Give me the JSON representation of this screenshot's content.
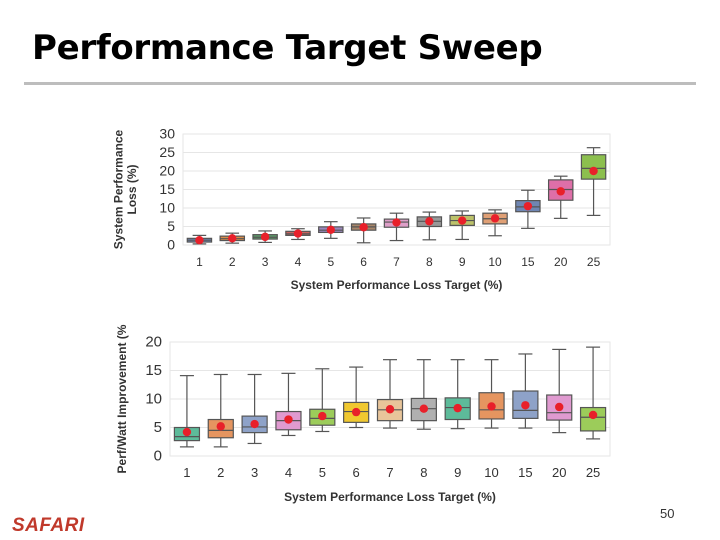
{
  "slide": {
    "title": "Performance Target Sweep",
    "page_number": "50",
    "logo_text": "SAFARI"
  },
  "colors": {
    "brand": "#c0392b",
    "mean_marker": "#e8202a",
    "axis_text": "#333333",
    "grid": "#e6e6e6",
    "box_outline": "#555555",
    "title_rule": "#bdbdbd"
  },
  "chart_data": [
    {
      "type": "box",
      "title": "",
      "xlabel": "System Performance Loss Target (%)",
      "ylabel": "System Performance Loss (%)",
      "ylim": [
        0,
        30
      ],
      "yticks": [
        0,
        5,
        10,
        15,
        20,
        25,
        30
      ],
      "categories": [
        "1",
        "2",
        "3",
        "4",
        "5",
        "6",
        "7",
        "8",
        "9",
        "10",
        "15",
        "20",
        "25"
      ],
      "boxes": [
        {
          "category": "1",
          "whisker_low": 0.3,
          "q1": 0.8,
          "median": 1.3,
          "q3": 1.8,
          "whisker_high": 2.6,
          "mean": 1.3,
          "color": "#6f86b3"
        },
        {
          "category": "2",
          "whisker_low": 0.5,
          "q1": 1.2,
          "median": 1.7,
          "q3": 2.4,
          "whisker_high": 3.2,
          "mean": 1.8,
          "color": "#d98c4a"
        },
        {
          "category": "3",
          "whisker_low": 0.7,
          "q1": 1.6,
          "median": 2.1,
          "q3": 2.8,
          "whisker_high": 3.8,
          "mean": 2.2,
          "color": "#5d9e6a"
        },
        {
          "category": "4",
          "whisker_low": 1.5,
          "q1": 2.6,
          "median": 3.0,
          "q3": 3.7,
          "whisker_high": 4.4,
          "mean": 3.1,
          "color": "#c96560"
        },
        {
          "category": "5",
          "whisker_low": 1.8,
          "q1": 3.4,
          "median": 4.0,
          "q3": 4.9,
          "whisker_high": 6.3,
          "mean": 4.1,
          "color": "#9a87bd"
        },
        {
          "category": "6",
          "whisker_low": 0.6,
          "q1": 4.0,
          "median": 4.9,
          "q3": 5.7,
          "whisker_high": 7.3,
          "mean": 4.8,
          "color": "#a8876a"
        },
        {
          "category": "7",
          "whisker_low": 1.2,
          "q1": 4.8,
          "median": 6.2,
          "q3": 7.0,
          "whisker_high": 8.6,
          "mean": 6.1,
          "color": "#de9fc8"
        },
        {
          "category": "8",
          "whisker_low": 1.4,
          "q1": 5.0,
          "median": 6.4,
          "q3": 7.6,
          "whisker_high": 8.9,
          "mean": 6.4,
          "color": "#999999"
        },
        {
          "category": "9",
          "whisker_low": 1.5,
          "q1": 5.3,
          "median": 6.6,
          "q3": 8.0,
          "whisker_high": 9.2,
          "mean": 6.6,
          "color": "#bcc26a"
        },
        {
          "category": "10",
          "whisker_low": 2.5,
          "q1": 5.7,
          "median": 7.1,
          "q3": 8.6,
          "whisker_high": 9.5,
          "mean": 7.2,
          "color": "#e0a075"
        },
        {
          "category": "15",
          "whisker_low": 4.5,
          "q1": 9.0,
          "median": 10.3,
          "q3": 12.0,
          "whisker_high": 14.8,
          "mean": 10.5,
          "color": "#6f86b3"
        },
        {
          "category": "20",
          "whisker_low": 7.2,
          "q1": 12.1,
          "median": 15.0,
          "q3": 17.6,
          "whisker_high": 18.6,
          "mean": 14.5,
          "color": "#de6fa8"
        },
        {
          "category": "25",
          "whisker_low": 8.0,
          "q1": 17.8,
          "median": 20.7,
          "q3": 24.4,
          "whisker_high": 26.3,
          "mean": 20.0,
          "color": "#8cbf4e"
        }
      ]
    },
    {
      "type": "box",
      "title": "",
      "xlabel": "System Performance Loss Target (%)",
      "ylabel": "Perf/Watt Improvement (%",
      "ylim": [
        0,
        20
      ],
      "yticks": [
        0,
        5,
        10,
        15,
        20
      ],
      "categories": [
        "1",
        "2",
        "3",
        "4",
        "5",
        "6",
        "7",
        "8",
        "9",
        "10",
        "15",
        "20",
        "25"
      ],
      "boxes": [
        {
          "category": "1",
          "whisker_low": 1.6,
          "q1": 2.7,
          "median": 3.4,
          "q3": 5.0,
          "whisker_high": 14.1,
          "mean": 4.2,
          "color": "#5dbb9a"
        },
        {
          "category": "2",
          "whisker_low": 1.6,
          "q1": 3.2,
          "median": 4.5,
          "q3": 6.4,
          "whisker_high": 14.3,
          "mean": 5.2,
          "color": "#e59560"
        },
        {
          "category": "3",
          "whisker_low": 2.2,
          "q1": 4.1,
          "median": 5.1,
          "q3": 7.0,
          "whisker_high": 14.3,
          "mean": 5.6,
          "color": "#8ea2c8"
        },
        {
          "category": "4",
          "whisker_low": 3.6,
          "q1": 4.6,
          "median": 6.2,
          "q3": 7.8,
          "whisker_high": 14.5,
          "mean": 6.4,
          "color": "#e09ad0"
        },
        {
          "category": "5",
          "whisker_low": 4.3,
          "q1": 5.4,
          "median": 6.6,
          "q3": 8.2,
          "whisker_high": 15.3,
          "mean": 7.0,
          "color": "#9ccc5a"
        },
        {
          "category": "6",
          "whisker_low": 5.0,
          "q1": 5.9,
          "median": 7.8,
          "q3": 9.4,
          "whisker_high": 15.6,
          "mean": 7.7,
          "color": "#f0c830"
        },
        {
          "category": "7",
          "whisker_low": 4.9,
          "q1": 6.2,
          "median": 8.1,
          "q3": 9.9,
          "whisker_high": 16.9,
          "mean": 8.2,
          "color": "#e8c49a"
        },
        {
          "category": "8",
          "whisker_low": 4.7,
          "q1": 6.2,
          "median": 8.3,
          "q3": 10.1,
          "whisker_high": 16.9,
          "mean": 8.3,
          "color": "#b0b0b0"
        },
        {
          "category": "9",
          "whisker_low": 4.8,
          "q1": 6.4,
          "median": 8.5,
          "q3": 10.2,
          "whisker_high": 16.9,
          "mean": 8.4,
          "color": "#5dbb9a"
        },
        {
          "category": "10",
          "whisker_low": 4.9,
          "q1": 6.5,
          "median": 8.1,
          "q3": 11.1,
          "whisker_high": 16.9,
          "mean": 8.7,
          "color": "#e59560"
        },
        {
          "category": "15",
          "whisker_low": 4.9,
          "q1": 6.6,
          "median": 8.0,
          "q3": 11.4,
          "whisker_high": 17.9,
          "mean": 8.9,
          "color": "#8ea2c8"
        },
        {
          "category": "20",
          "whisker_low": 4.1,
          "q1": 6.3,
          "median": 7.6,
          "q3": 10.7,
          "whisker_high": 18.7,
          "mean": 8.6,
          "color": "#e09ad0"
        },
        {
          "category": "25",
          "whisker_low": 3.0,
          "q1": 4.4,
          "median": 6.8,
          "q3": 8.5,
          "whisker_high": 19.1,
          "mean": 7.2,
          "color": "#9ccc5a"
        }
      ]
    }
  ]
}
